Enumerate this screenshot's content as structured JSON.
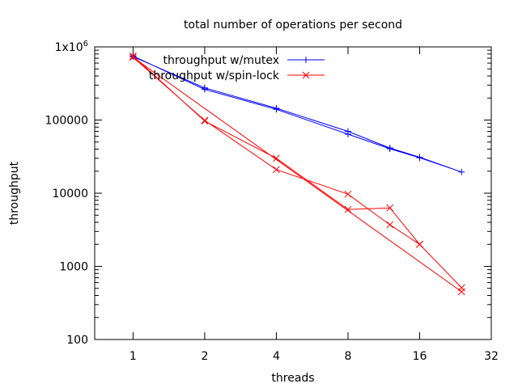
{
  "chart_data": {
    "type": "line",
    "title": "total number of operations per second",
    "xlabel": "threads",
    "ylabel": "throughput",
    "x_scale": "log2",
    "y_scale": "log10",
    "xlim": [
      0.69,
      32
    ],
    "ylim": [
      100,
      1000000
    ],
    "x_ticks": [
      {
        "value": 1,
        "label": "1"
      },
      {
        "value": 2,
        "label": "2"
      },
      {
        "value": 4,
        "label": "4"
      },
      {
        "value": 8,
        "label": "8"
      },
      {
        "value": 16,
        "label": "16"
      },
      {
        "value": 32,
        "label": "32"
      }
    ],
    "y_ticks": [
      {
        "value": 100,
        "label": "100",
        "sup": ""
      },
      {
        "value": 1000,
        "label": "1000",
        "sup": ""
      },
      {
        "value": 10000,
        "label": "10000",
        "sup": ""
      },
      {
        "value": 100000,
        "label": "100000",
        "sup": ""
      },
      {
        "value": 1000000,
        "label": "1x10",
        "sup": "6"
      }
    ],
    "grid": false,
    "legend_position": "top-right",
    "series": [
      {
        "name": "throughput w/mutex",
        "color": "#0000ff",
        "marker": "plus",
        "points": [
          {
            "x": 1,
            "y": 750000
          },
          {
            "x": 2,
            "y": 262000
          },
          {
            "x": 4,
            "y": 140000
          },
          {
            "x": 8,
            "y": 64000
          },
          {
            "x": 12,
            "y": 40500
          },
          {
            "x": 16,
            "y": 30500
          },
          {
            "x": 24,
            "y": 19500
          },
          {
            "x": 16,
            "y": 31000
          },
          {
            "x": 12,
            "y": 41500
          },
          {
            "x": 8,
            "y": 70000
          },
          {
            "x": 4,
            "y": 145000
          },
          {
            "x": 2,
            "y": 275000
          },
          {
            "x": 1,
            "y": 735000
          }
        ]
      },
      {
        "name": "throughput w/spin-lock",
        "color": "#ff0000",
        "marker": "cross",
        "points": [
          {
            "x": 1,
            "y": 750000
          },
          {
            "x": 2,
            "y": 97000
          },
          {
            "x": 4,
            "y": 30000
          },
          {
            "x": 8,
            "y": 6000
          },
          {
            "x": 12,
            "y": 6300
          },
          {
            "x": 16,
            "y": 2000
          },
          {
            "x": 24,
            "y": 510
          },
          {
            "x": 16,
            "y": 2000
          },
          {
            "x": 12,
            "y": 3700
          },
          {
            "x": 8,
            "y": 9700
          },
          {
            "x": 4,
            "y": 21000
          },
          {
            "x": 2,
            "y": 99000
          },
          {
            "x": 1,
            "y": 720000
          },
          {
            "x": 24,
            "y": 450
          }
        ]
      }
    ]
  }
}
